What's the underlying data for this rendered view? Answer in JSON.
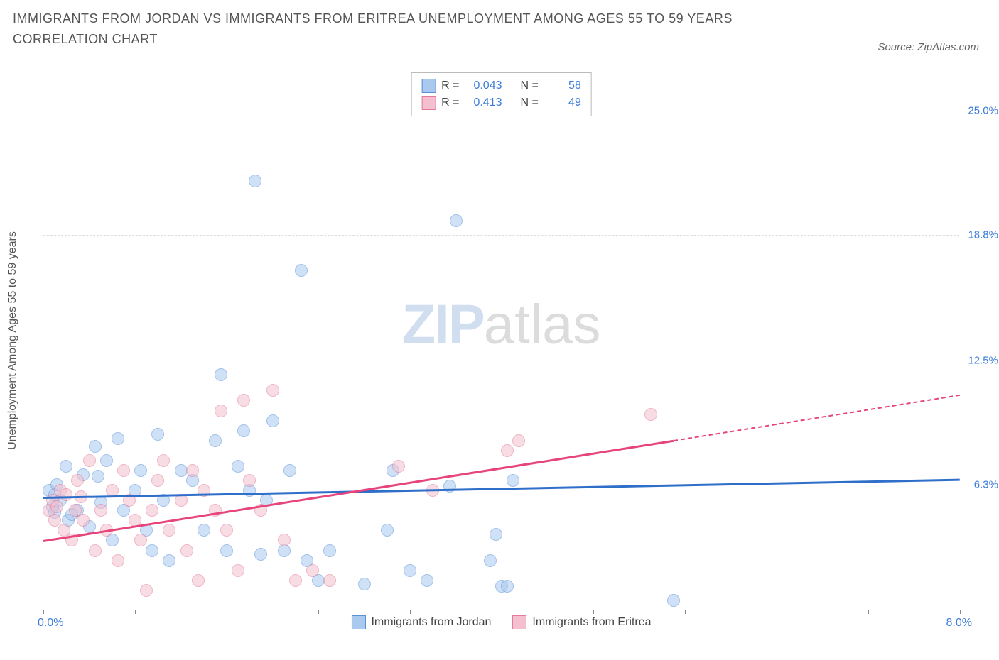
{
  "title": "IMMIGRANTS FROM JORDAN VS IMMIGRANTS FROM ERITREA UNEMPLOYMENT AMONG AGES 55 TO 59 YEARS CORRELATION CHART",
  "source": "Source: ZipAtlas.com",
  "watermark_zip": "ZIP",
  "watermark_atlas": "atlas",
  "yaxis_title": "Unemployment Among Ages 55 to 59 years",
  "chart": {
    "type": "scatter",
    "xlim": [
      0,
      8.0
    ],
    "ylim": [
      0,
      27.0
    ],
    "x_min_label": "0.0%",
    "x_max_label": "8.0%",
    "xtick_positions": [
      0,
      0.8,
      1.6,
      2.4,
      3.2,
      4.0,
      4.8,
      5.6,
      6.4,
      7.2,
      8.0
    ],
    "yticks": [
      {
        "v": 6.3,
        "label": "6.3%"
      },
      {
        "v": 12.5,
        "label": "12.5%"
      },
      {
        "v": 18.8,
        "label": "18.8%"
      },
      {
        "v": 25.0,
        "label": "25.0%"
      }
    ],
    "grid_color": "#dddddd",
    "axis_color": "#8a8a8a",
    "background_color": "#ffffff",
    "marker_radius": 9,
    "marker_opacity": 0.55,
    "series": [
      {
        "name": "Immigrants from Jordan",
        "key": "jordan",
        "fill": "#a9c9ef",
        "stroke": "#5b8fd6",
        "line_color": "#2f6fc9",
        "R": "0.043",
        "N": "58",
        "trend": {
          "x0": 0.0,
          "y0": 5.7,
          "x1": 8.0,
          "y1": 6.6,
          "solid_until": 8.0
        },
        "points": [
          [
            0.05,
            6.0
          ],
          [
            0.08,
            5.2
          ],
          [
            0.1,
            5.8
          ],
          [
            0.1,
            4.9
          ],
          [
            0.12,
            6.3
          ],
          [
            0.15,
            5.5
          ],
          [
            0.2,
            7.2
          ],
          [
            0.22,
            4.5
          ],
          [
            0.3,
            5.0
          ],
          [
            0.35,
            6.8
          ],
          [
            0.4,
            4.2
          ],
          [
            0.45,
            8.2
          ],
          [
            0.5,
            5.4
          ],
          [
            0.55,
            7.5
          ],
          [
            0.6,
            3.5
          ],
          [
            0.65,
            8.6
          ],
          [
            0.7,
            5.0
          ],
          [
            0.8,
            6.0
          ],
          [
            0.85,
            7.0
          ],
          [
            0.9,
            4.0
          ],
          [
            0.95,
            3.0
          ],
          [
            1.0,
            8.8
          ],
          [
            1.05,
            5.5
          ],
          [
            1.1,
            2.5
          ],
          [
            1.2,
            7.0
          ],
          [
            1.3,
            6.5
          ],
          [
            1.4,
            4.0
          ],
          [
            1.5,
            8.5
          ],
          [
            1.55,
            11.8
          ],
          [
            1.6,
            3.0
          ],
          [
            1.7,
            7.2
          ],
          [
            1.75,
            9.0
          ],
          [
            1.8,
            6.0
          ],
          [
            1.85,
            21.5
          ],
          [
            1.9,
            2.8
          ],
          [
            1.95,
            5.5
          ],
          [
            2.0,
            9.5
          ],
          [
            2.1,
            3.0
          ],
          [
            2.15,
            7.0
          ],
          [
            2.25,
            17.0
          ],
          [
            2.3,
            2.5
          ],
          [
            2.4,
            1.5
          ],
          [
            2.5,
            3.0
          ],
          [
            2.8,
            1.3
          ],
          [
            3.0,
            4.0
          ],
          [
            3.05,
            7.0
          ],
          [
            3.2,
            2.0
          ],
          [
            3.35,
            1.5
          ],
          [
            3.55,
            6.2
          ],
          [
            3.6,
            19.5
          ],
          [
            3.9,
            2.5
          ],
          [
            3.95,
            3.8
          ],
          [
            4.0,
            1.2
          ],
          [
            4.05,
            1.2
          ],
          [
            4.1,
            6.5
          ],
          [
            5.5,
            0.5
          ],
          [
            0.25,
            4.8
          ],
          [
            0.48,
            6.7
          ]
        ]
      },
      {
        "name": "Immigrants from Eritrea",
        "key": "eritrea",
        "fill": "#f4c0cf",
        "stroke": "#e27a98",
        "line_color": "#e6447a",
        "R": "0.413",
        "N": "49",
        "trend": {
          "x0": 0.0,
          "y0": 3.5,
          "x1": 8.0,
          "y1": 10.8,
          "solid_until": 5.5
        },
        "points": [
          [
            0.05,
            5.0
          ],
          [
            0.08,
            5.5
          ],
          [
            0.1,
            4.5
          ],
          [
            0.12,
            5.2
          ],
          [
            0.15,
            6.0
          ],
          [
            0.18,
            4.0
          ],
          [
            0.2,
            5.8
          ],
          [
            0.25,
            3.5
          ],
          [
            0.28,
            5.0
          ],
          [
            0.3,
            6.5
          ],
          [
            0.35,
            4.5
          ],
          [
            0.4,
            7.5
          ],
          [
            0.45,
            3.0
          ],
          [
            0.5,
            5.0
          ],
          [
            0.55,
            4.0
          ],
          [
            0.6,
            6.0
          ],
          [
            0.65,
            2.5
          ],
          [
            0.7,
            7.0
          ],
          [
            0.75,
            5.5
          ],
          [
            0.8,
            4.5
          ],
          [
            0.85,
            3.5
          ],
          [
            0.9,
            1.0
          ],
          [
            0.95,
            5.0
          ],
          [
            1.0,
            6.5
          ],
          [
            1.05,
            7.5
          ],
          [
            1.1,
            4.0
          ],
          [
            1.2,
            5.5
          ],
          [
            1.25,
            3.0
          ],
          [
            1.3,
            7.0
          ],
          [
            1.35,
            1.5
          ],
          [
            1.4,
            6.0
          ],
          [
            1.5,
            5.0
          ],
          [
            1.55,
            10.0
          ],
          [
            1.6,
            4.0
          ],
          [
            1.7,
            2.0
          ],
          [
            1.75,
            10.5
          ],
          [
            1.8,
            6.5
          ],
          [
            1.9,
            5.0
          ],
          [
            2.0,
            11.0
          ],
          [
            2.1,
            3.5
          ],
          [
            2.2,
            1.5
          ],
          [
            2.35,
            2.0
          ],
          [
            2.5,
            1.5
          ],
          [
            3.1,
            7.2
          ],
          [
            3.4,
            6.0
          ],
          [
            4.05,
            8.0
          ],
          [
            4.15,
            8.5
          ],
          [
            5.3,
            9.8
          ],
          [
            0.33,
            5.7
          ]
        ]
      }
    ],
    "legend": {
      "r_label": "R =",
      "n_label": "N ="
    }
  }
}
